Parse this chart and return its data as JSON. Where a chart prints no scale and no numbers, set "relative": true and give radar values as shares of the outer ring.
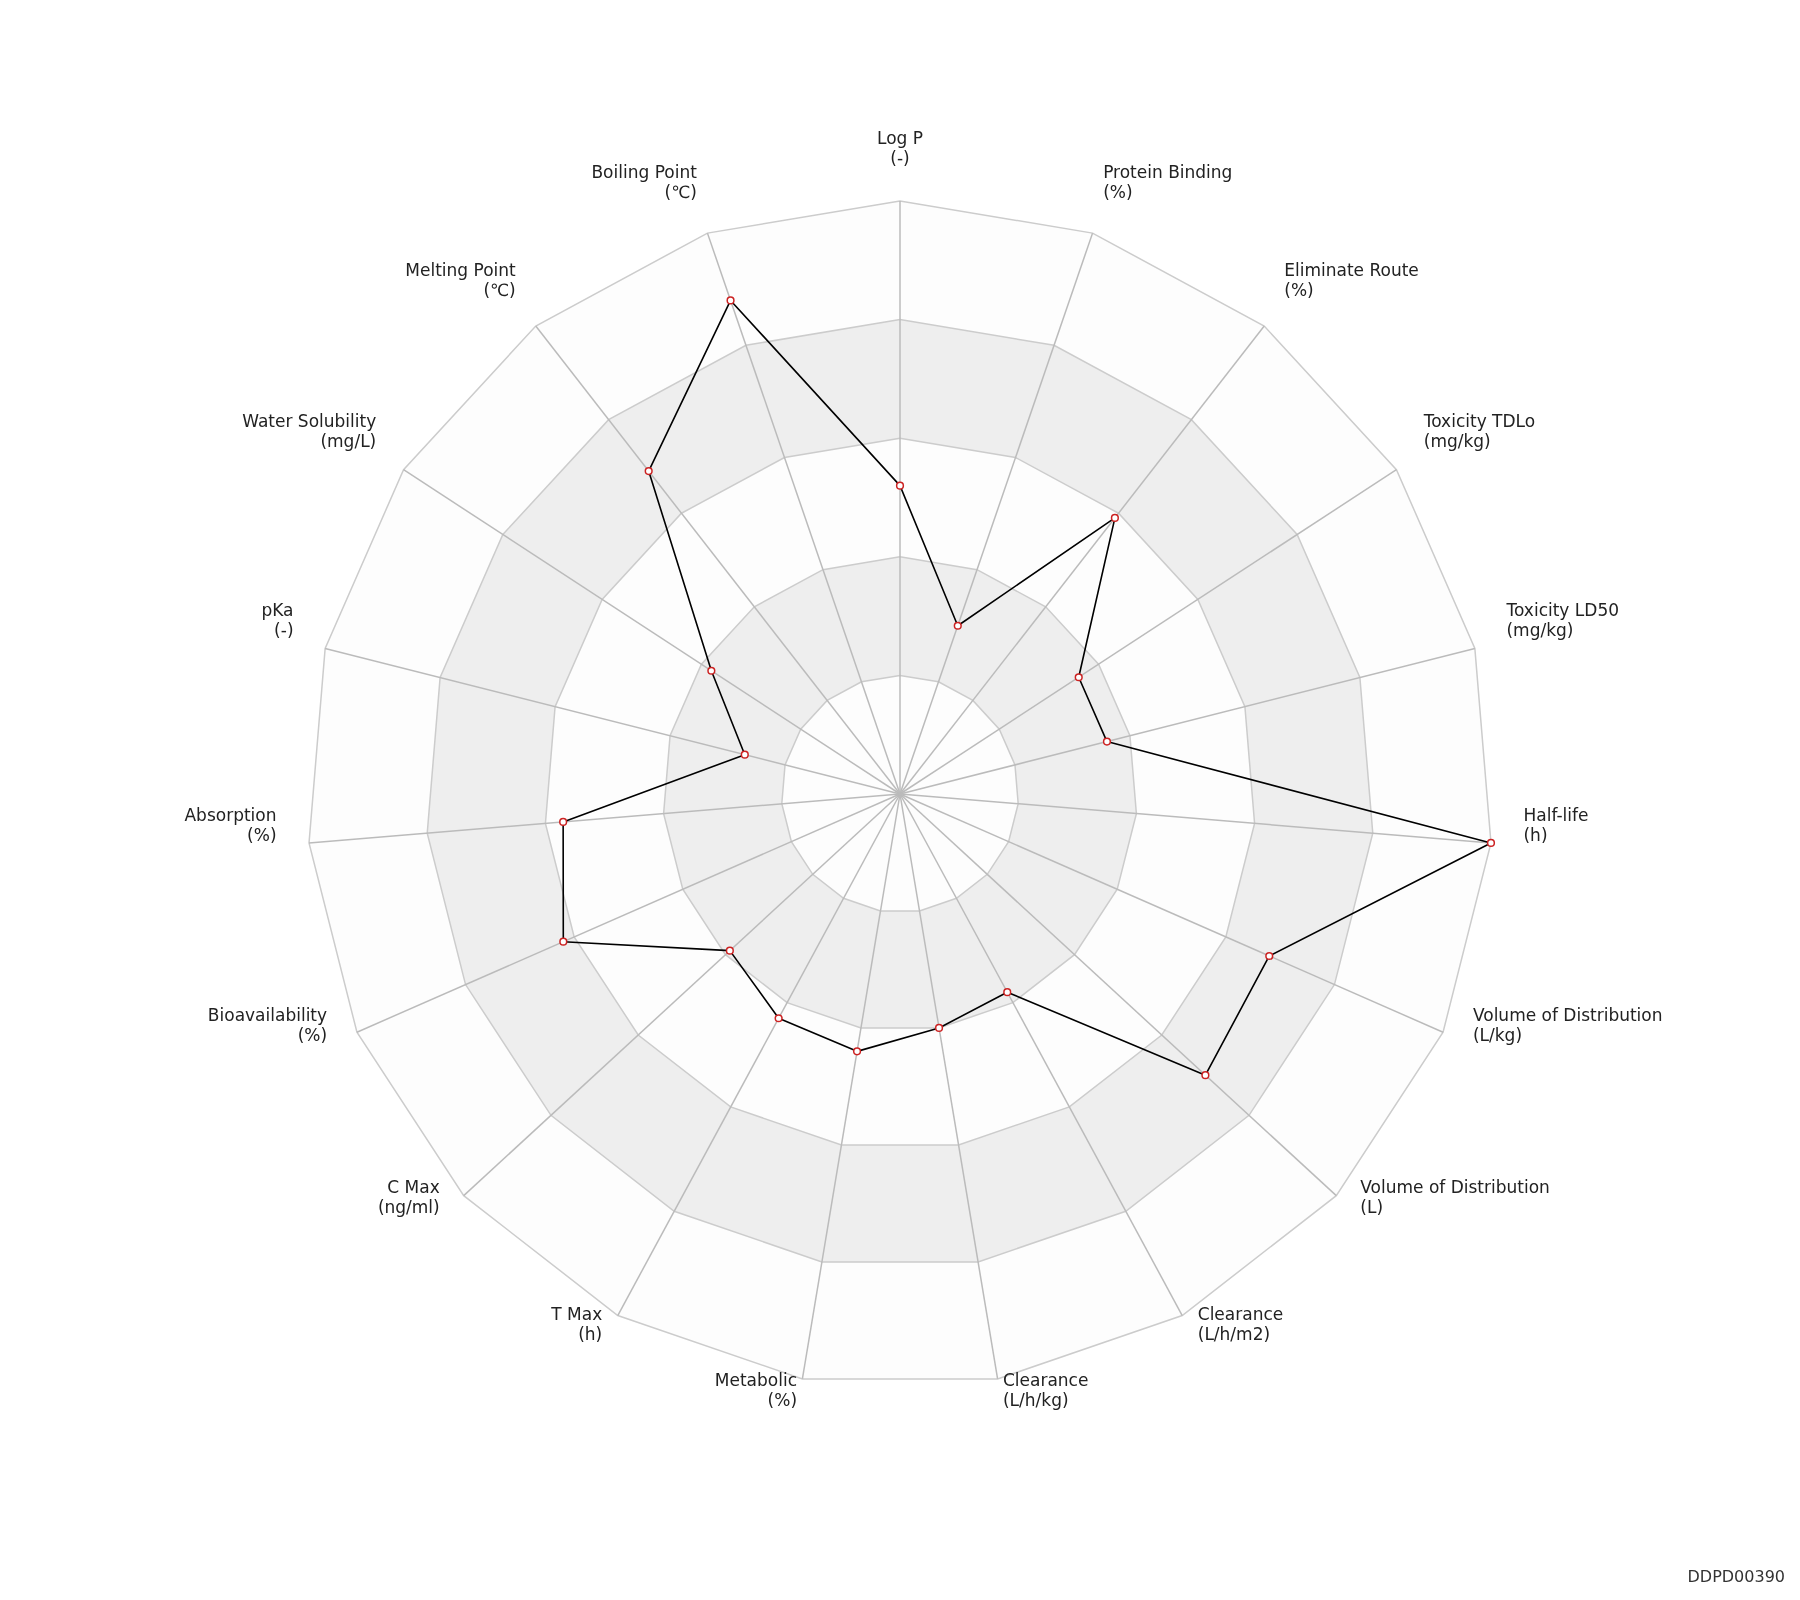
{
  "chart_data": {
    "type": "radar",
    "relative": true,
    "grid": true,
    "marker": "circle",
    "categories": [
      "Log P\n(-)",
      "Protein Binding\n(%)",
      "Eliminate Route\n(%)",
      "Toxicity TDLo\n(mg/kg)",
      "Toxicity LD50\n(mg/kg)",
      "Half-life\n(h)",
      "Volume of Distribution\n(L/kg)",
      "Volume of Distribution\n(L)",
      "Clearance\n(L/h/m2)",
      "Clearance\n(L/h/kg)",
      "Metabolic\n(%)",
      "T Max\n(h)",
      "C Max\n(ng/ml)",
      "Bioavailability\n(%)",
      "Absorption\n(%)",
      "pKa\n(-)",
      "Water Solubility\n(mg/L)",
      "Melting Point\n(℃)",
      "Boiling Point\n(℃)"
    ],
    "series": [
      {
        "color": "#000000",
        "values": [
          0.52,
          0.3,
          0.59,
          0.36,
          0.36,
          1.0,
          0.68,
          0.7,
          0.38,
          0.4,
          0.44,
          0.43,
          0.39,
          0.62,
          0.57,
          0.27,
          0.38,
          0.69,
          0.88
        ]
      }
    ],
    "annotations": [
      "DDPD00390"
    ]
  }
}
